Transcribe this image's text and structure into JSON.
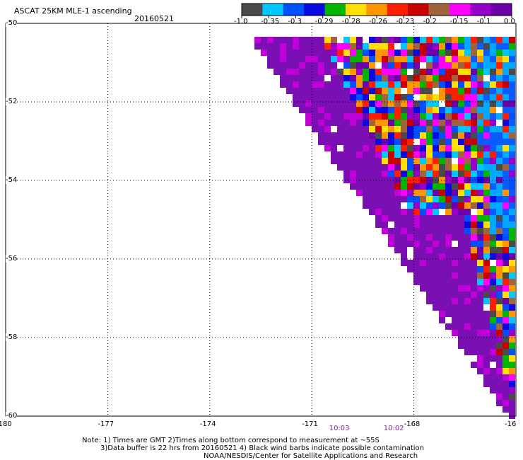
{
  "header": {
    "title": "ASCAT 25KM MLE-1 ascending",
    "date": "20160521"
  },
  "colorbar": {
    "labels": [
      "-1.0",
      "-0.35",
      "-0.3",
      "-0.29",
      "-0.28",
      "-0.26",
      "-0.23",
      "-0.2",
      "-0.15",
      "-0.1",
      "0.0"
    ],
    "colors": [
      "#4a4a4a",
      "#00c8ff",
      "#0050ff",
      "#0a0ae0",
      "#00b400",
      "#ffe000",
      "#ff9600",
      "#ff1e00",
      "#c80000",
      "#a0643c",
      "#ff00ff",
      "#9600c8",
      "#6e00aa"
    ]
  },
  "chart_data": {
    "type": "heatmap",
    "title": "ASCAT 25KM MLE-1 ascending",
    "subtitle": "20160521",
    "x_ticks": [
      "-180",
      "-177",
      "-174",
      "-171",
      "-168",
      "-16"
    ],
    "y_ticks": [
      "-50",
      "-52",
      "-54",
      "-56",
      "-58",
      "-60"
    ],
    "xlim": [
      -180,
      -165
    ],
    "ylim": [
      -60,
      -50
    ],
    "grid": true,
    "legend": "top-right colorbar",
    "time_labels": [
      {
        "text": "10:03",
        "lon": -170.2,
        "color": "#7a1fa2"
      },
      {
        "text": "10:02",
        "lon": -168.6,
        "color": "#7a1fa2"
      }
    ]
  },
  "notes": {
    "line1": "Note: 1) Times are GMT 2)Times along bottom correspond to measurement at ~55S",
    "line2": "3)Data buffer is 22 hrs from 20160521 4) Black wind barbs indicate possible contamination",
    "line3": "NOAA/NESDIS/Center for Satellite Applications and Research"
  }
}
